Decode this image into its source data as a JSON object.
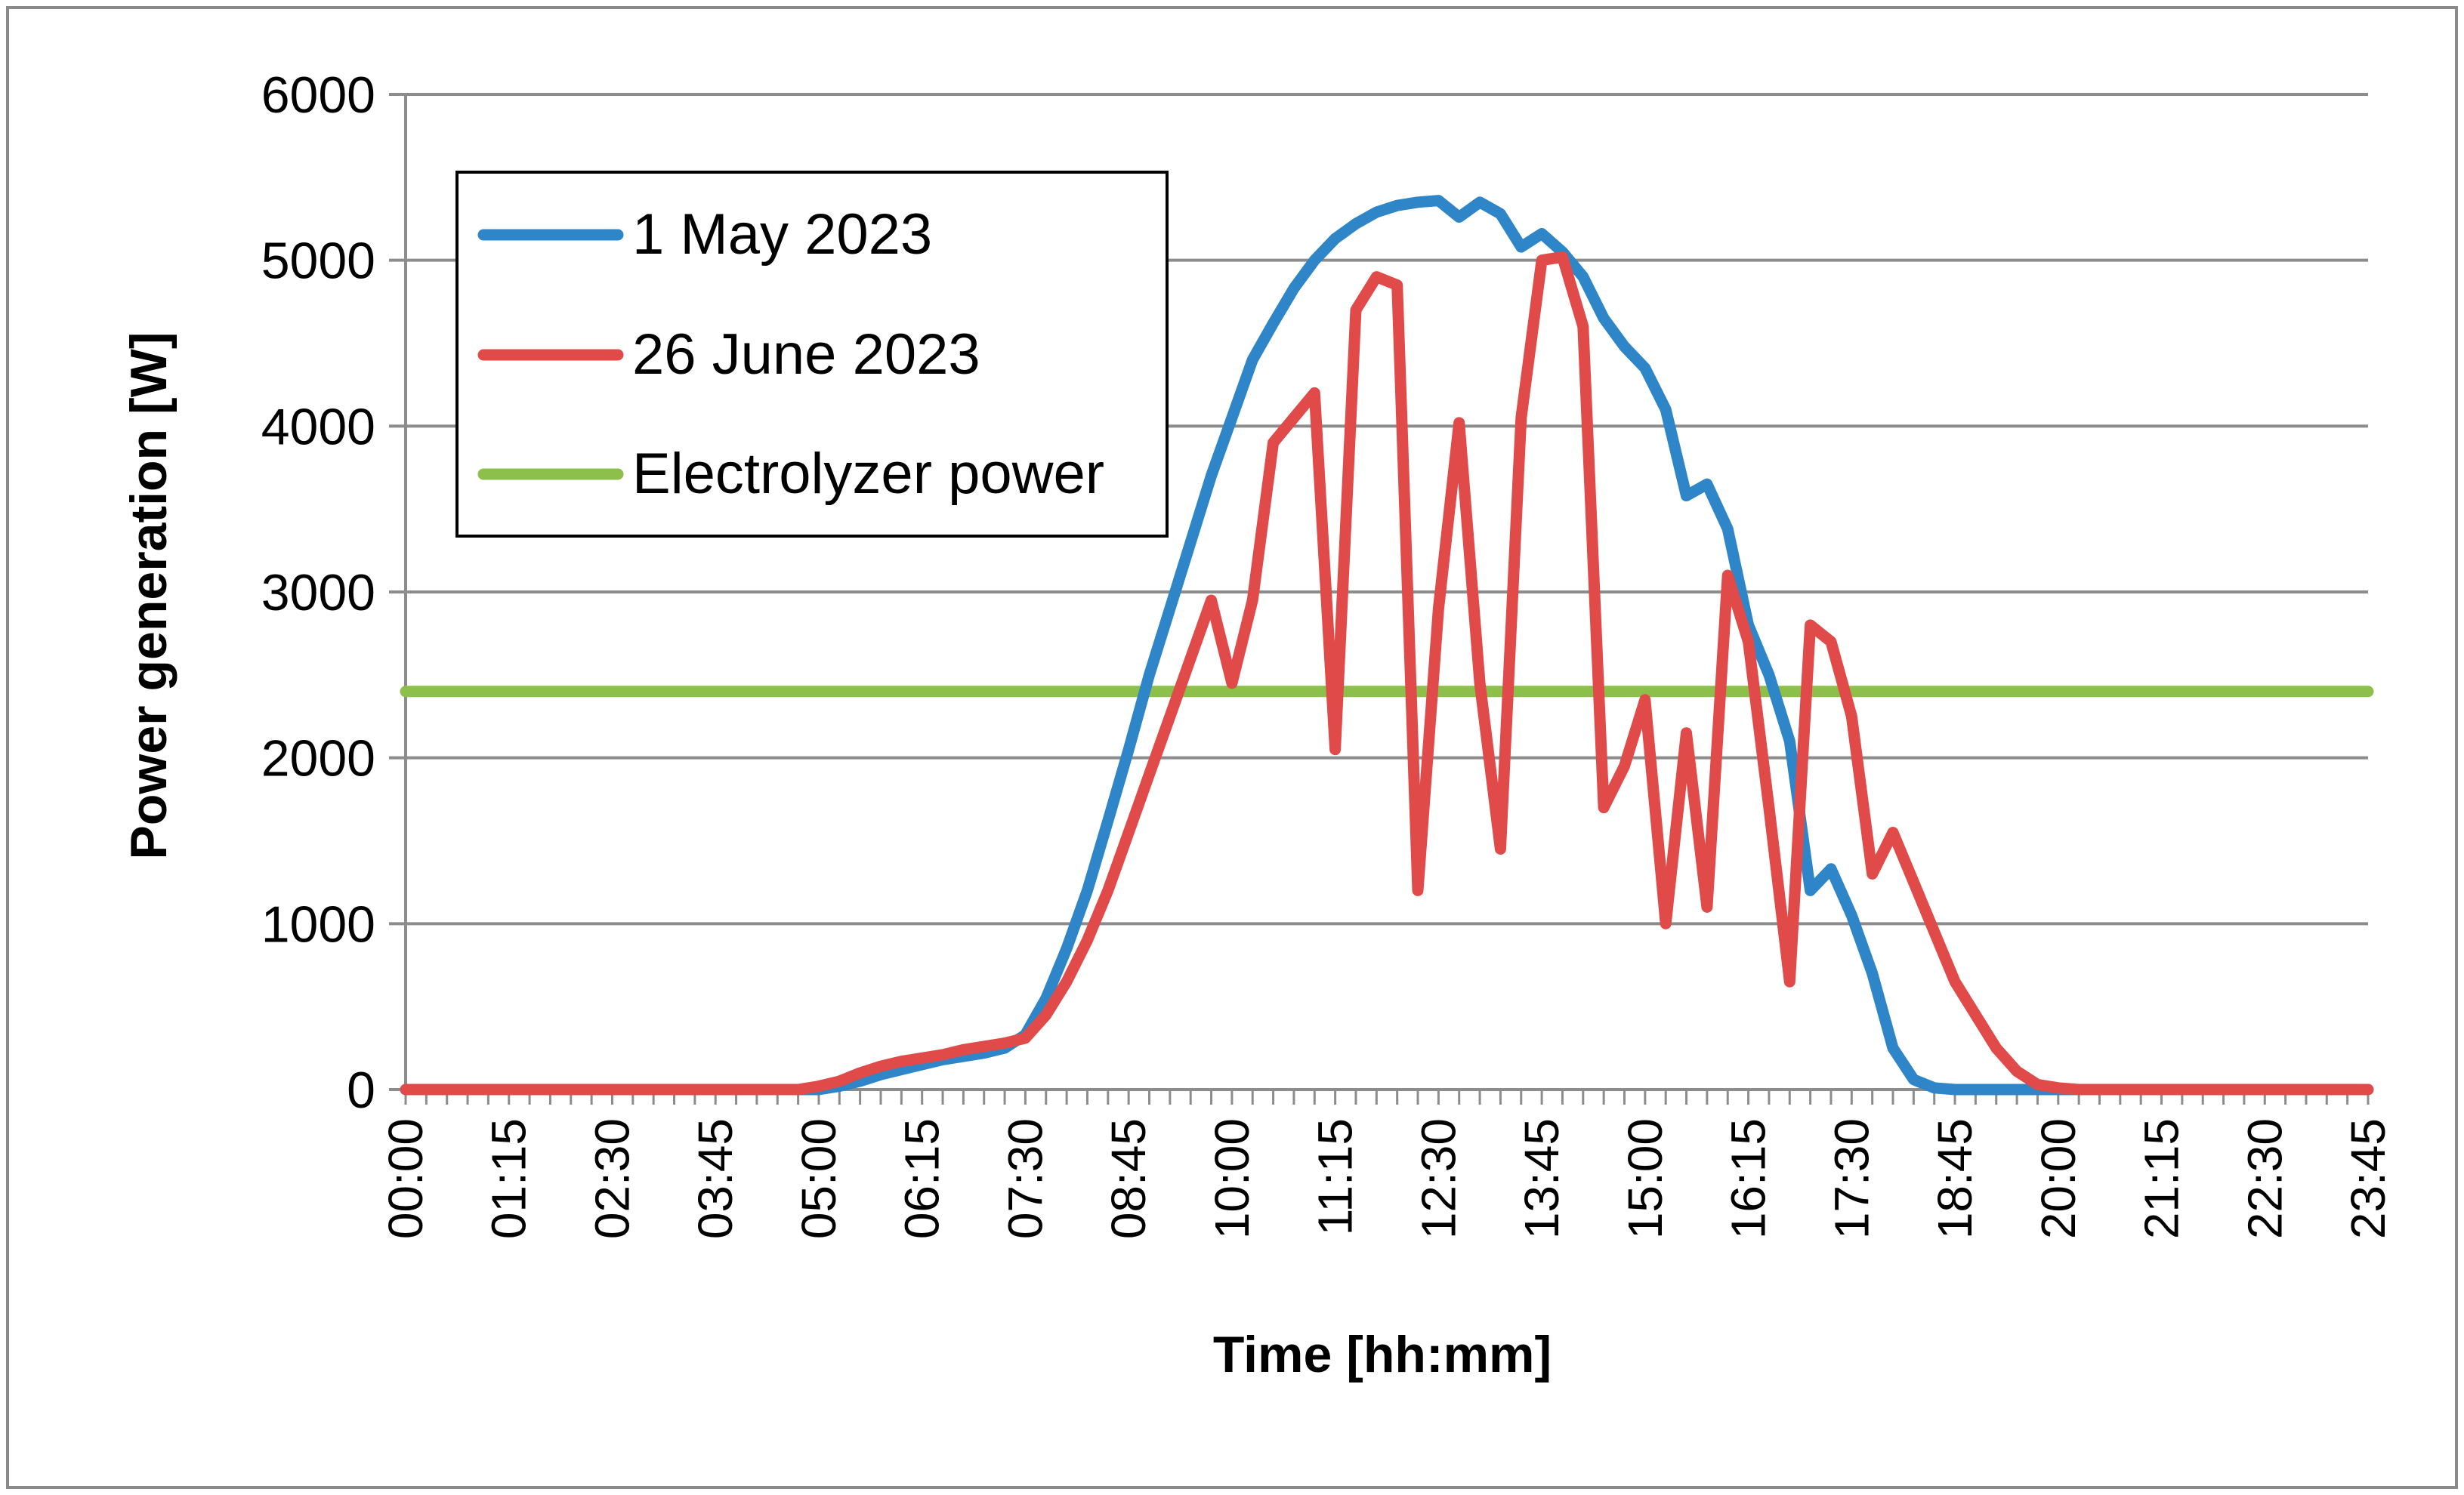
{
  "chart_data": {
    "type": "line",
    "title": "",
    "xlabel": "Time [hh:mm]",
    "ylabel": "Power generation [W]",
    "ylim": [
      0,
      6000
    ],
    "yticks": [
      0,
      1000,
      2000,
      3000,
      4000,
      5000,
      6000
    ],
    "x_tick_labels": [
      "00:00",
      "01:15",
      "02:30",
      "03:45",
      "05:00",
      "06:15",
      "07:30",
      "08:45",
      "10:00",
      "11:15",
      "12:30",
      "13:45",
      "15:00",
      "16:15",
      "17:30",
      "18:45",
      "20:00",
      "21:15",
      "22:30",
      "23:45"
    ],
    "interval_minutes": 15,
    "num_points": 96,
    "grid": true,
    "legend_position": "top-left",
    "series": [
      {
        "name": "1 May 2023",
        "color": "#2E86C8",
        "points": [
          [
            0,
            0
          ],
          [
            19,
            0
          ],
          [
            20,
            0
          ],
          [
            21,
            20
          ],
          [
            22,
            50
          ],
          [
            23,
            90
          ],
          [
            24,
            120
          ],
          [
            25,
            150
          ],
          [
            26,
            180
          ],
          [
            27,
            200
          ],
          [
            28,
            220
          ],
          [
            29,
            250
          ],
          [
            30,
            330
          ],
          [
            31,
            550
          ],
          [
            32,
            850
          ],
          [
            33,
            1200
          ],
          [
            34,
            1620
          ],
          [
            35,
            2050
          ],
          [
            36,
            2500
          ],
          [
            37,
            2900
          ],
          [
            38,
            3300
          ],
          [
            39,
            3700
          ],
          [
            40,
            4050
          ],
          [
            41,
            4400
          ],
          [
            42,
            4620
          ],
          [
            43,
            4830
          ],
          [
            44,
            5000
          ],
          [
            45,
            5130
          ],
          [
            46,
            5220
          ],
          [
            47,
            5290
          ],
          [
            48,
            5330
          ],
          [
            49,
            5350
          ],
          [
            50,
            5360
          ],
          [
            51,
            5260
          ],
          [
            52,
            5350
          ],
          [
            53,
            5280
          ],
          [
            54,
            5080
          ],
          [
            55,
            5160
          ],
          [
            56,
            5050
          ],
          [
            57,
            4900
          ],
          [
            58,
            4650
          ],
          [
            59,
            4480
          ],
          [
            60,
            4350
          ],
          [
            61,
            4100
          ],
          [
            62,
            3580
          ],
          [
            63,
            3650
          ],
          [
            64,
            3380
          ],
          [
            65,
            2800
          ],
          [
            66,
            2500
          ],
          [
            67,
            2100
          ],
          [
            68,
            1200
          ],
          [
            69,
            1330
          ],
          [
            70,
            1050
          ],
          [
            71,
            700
          ],
          [
            72,
            250
          ],
          [
            73,
            60
          ],
          [
            74,
            10
          ],
          [
            75,
            0
          ],
          [
            95,
            0
          ]
        ]
      },
      {
        "name": "26 June 2023",
        "color": "#E04B4A",
        "points": [
          [
            0,
            0
          ],
          [
            19,
            0
          ],
          [
            20,
            20
          ],
          [
            21,
            50
          ],
          [
            22,
            100
          ],
          [
            23,
            140
          ],
          [
            24,
            170
          ],
          [
            25,
            190
          ],
          [
            26,
            210
          ],
          [
            27,
            240
          ],
          [
            28,
            260
          ],
          [
            29,
            280
          ],
          [
            30,
            310
          ],
          [
            31,
            450
          ],
          [
            32,
            650
          ],
          [
            33,
            900
          ],
          [
            34,
            1200
          ],
          [
            35,
            1550
          ],
          [
            36,
            1900
          ],
          [
            37,
            2250
          ],
          [
            38,
            2600
          ],
          [
            39,
            2950
          ],
          [
            40,
            2450
          ],
          [
            41,
            2950
          ],
          [
            42,
            3900
          ],
          [
            43,
            4050
          ],
          [
            44,
            4200
          ],
          [
            45,
            2050
          ],
          [
            46,
            4700
          ],
          [
            47,
            4900
          ],
          [
            48,
            4850
          ],
          [
            49,
            1200
          ],
          [
            50,
            2900
          ],
          [
            51,
            4020
          ],
          [
            52,
            2450
          ],
          [
            53,
            1450
          ],
          [
            54,
            4050
          ],
          [
            55,
            5000
          ],
          [
            56,
            5020
          ],
          [
            57,
            4600
          ],
          [
            58,
            1700
          ],
          [
            59,
            1950
          ],
          [
            60,
            2350
          ],
          [
            61,
            1000
          ],
          [
            62,
            2150
          ],
          [
            63,
            1100
          ],
          [
            64,
            3100
          ],
          [
            65,
            2700
          ],
          [
            66,
            1700
          ],
          [
            67,
            650
          ],
          [
            68,
            2800
          ],
          [
            69,
            2700
          ],
          [
            70,
            2250
          ],
          [
            71,
            1300
          ],
          [
            72,
            1550
          ],
          [
            73,
            1250
          ],
          [
            74,
            950
          ],
          [
            75,
            650
          ],
          [
            76,
            450
          ],
          [
            77,
            250
          ],
          [
            78,
            110
          ],
          [
            79,
            30
          ],
          [
            80,
            10
          ],
          [
            81,
            0
          ],
          [
            95,
            0
          ]
        ]
      },
      {
        "name": "Electrolyzer power",
        "color": "#8DC04A",
        "points": [
          [
            0,
            2400
          ],
          [
            95,
            2400
          ]
        ]
      }
    ]
  }
}
